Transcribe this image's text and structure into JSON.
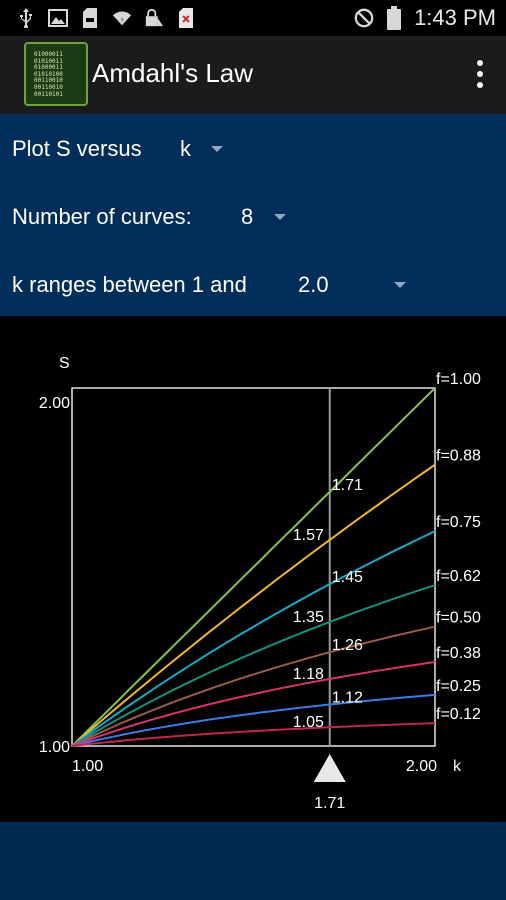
{
  "status_bar": {
    "time": "1:43 PM",
    "icons": [
      "usb-icon",
      "image-icon",
      "sd-card-icon",
      "wifi-icon",
      "lock-icon",
      "sim-error-icon",
      "do-not-disturb-icon",
      "battery-icon"
    ]
  },
  "app": {
    "title": "Amdahl's Law",
    "icon": "binary-chip-icon",
    "icon_text": "01000011\n01010011\n01000011\n01010100\n00110010\n00110010\n00110101"
  },
  "controls": {
    "plot_label": "Plot S versus",
    "plot_value": "k",
    "curves_label": "Number of curves:",
    "curves_value": "8",
    "range_label": "k ranges between 1 and",
    "range_value": "2.0"
  },
  "chart_data": {
    "type": "line",
    "xlabel": "k",
    "ylabel": "S",
    "xlim": [
      1.0,
      2.0
    ],
    "ylim": [
      1.0,
      2.0
    ],
    "x_tick_labels": [
      "1.00",
      "2.00"
    ],
    "y_tick_labels": [
      "1.00",
      "2.00"
    ],
    "grid": false,
    "cursor": {
      "k": 1.71,
      "label": "1.71"
    },
    "series": [
      {
        "name": "f=1.00",
        "f": 1.0,
        "color": "#8bc34a",
        "value_at_cursor": "1.71"
      },
      {
        "name": "f=0.88",
        "f": 0.88,
        "color": "#f2b531",
        "value_at_cursor": "1.57"
      },
      {
        "name": "f=0.75",
        "f": 0.75,
        "color": "#17a9c6",
        "value_at_cursor": "1.45"
      },
      {
        "name": "f=0.62",
        "f": 0.62,
        "color": "#15907e",
        "value_at_cursor": "1.35"
      },
      {
        "name": "f=0.50",
        "f": 0.5,
        "color": "#9c5b48",
        "value_at_cursor": "1.26"
      },
      {
        "name": "f=0.38",
        "f": 0.38,
        "color": "#d6336c",
        "value_at_cursor": "1.18"
      },
      {
        "name": "f=0.25",
        "f": 0.25,
        "color": "#3c7be6",
        "value_at_cursor": "1.12"
      },
      {
        "name": "f=0.12",
        "f": 0.12,
        "color": "#c2264f",
        "value_at_cursor": "1.05"
      }
    ]
  }
}
